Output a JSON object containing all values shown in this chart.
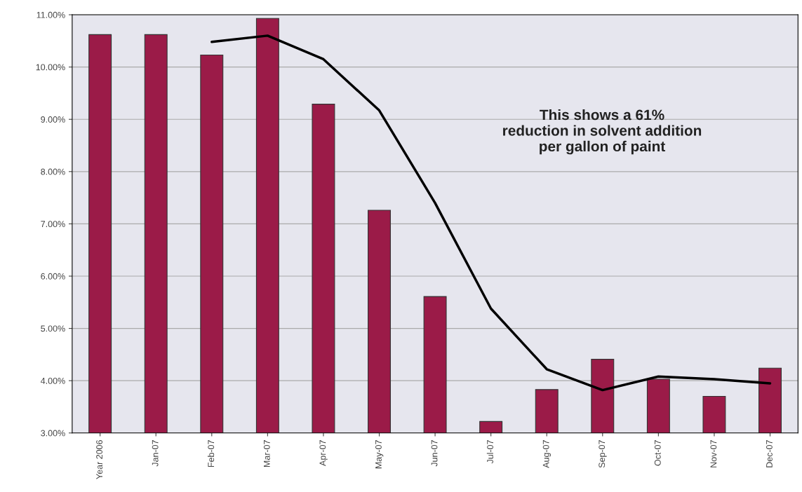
{
  "chart_data": {
    "type": "bar",
    "categories": [
      "Year 2006",
      "Jan-07",
      "Feb-07",
      "Mar-07",
      "Apr-07",
      "May-07",
      "Jun-07",
      "Jul-07",
      "Aug-07",
      "Sep-07",
      "Oct-07",
      "Nov-07",
      "Dec-07"
    ],
    "series": [
      {
        "color": "#9b1b48",
        "values": [
          10.62,
          10.62,
          10.23,
          10.93,
          9.29,
          7.26,
          5.61,
          3.22,
          3.83,
          4.41,
          4.03,
          3.7,
          4.24
        ]
      },
      {
        "type": "line",
        "color": "#000000",
        "values": [
          null,
          null,
          10.48,
          10.6,
          10.15,
          9.17,
          7.4,
          5.38,
          4.22,
          3.82,
          4.08,
          4.03,
          3.95
        ]
      }
    ],
    "ylim": [
      3,
      11
    ],
    "yticks": [
      {
        "value": 3,
        "label": "3.00%"
      },
      {
        "value": 4,
        "label": "4.00%"
      },
      {
        "value": 5,
        "label": "5.00%"
      },
      {
        "value": 6,
        "label": "6.00%"
      },
      {
        "value": 7,
        "label": "7.00%"
      },
      {
        "value": 8,
        "label": "8.00%"
      },
      {
        "value": 9,
        "label": "9.00%"
      },
      {
        "value": 10,
        "label": "10.00%"
      },
      {
        "value": 11,
        "label": "11.00%"
      }
    ],
    "grid": "y",
    "annotations": [
      "This shows a 61%\nreduction in solvent addition\nper gallon of paint"
    ]
  }
}
